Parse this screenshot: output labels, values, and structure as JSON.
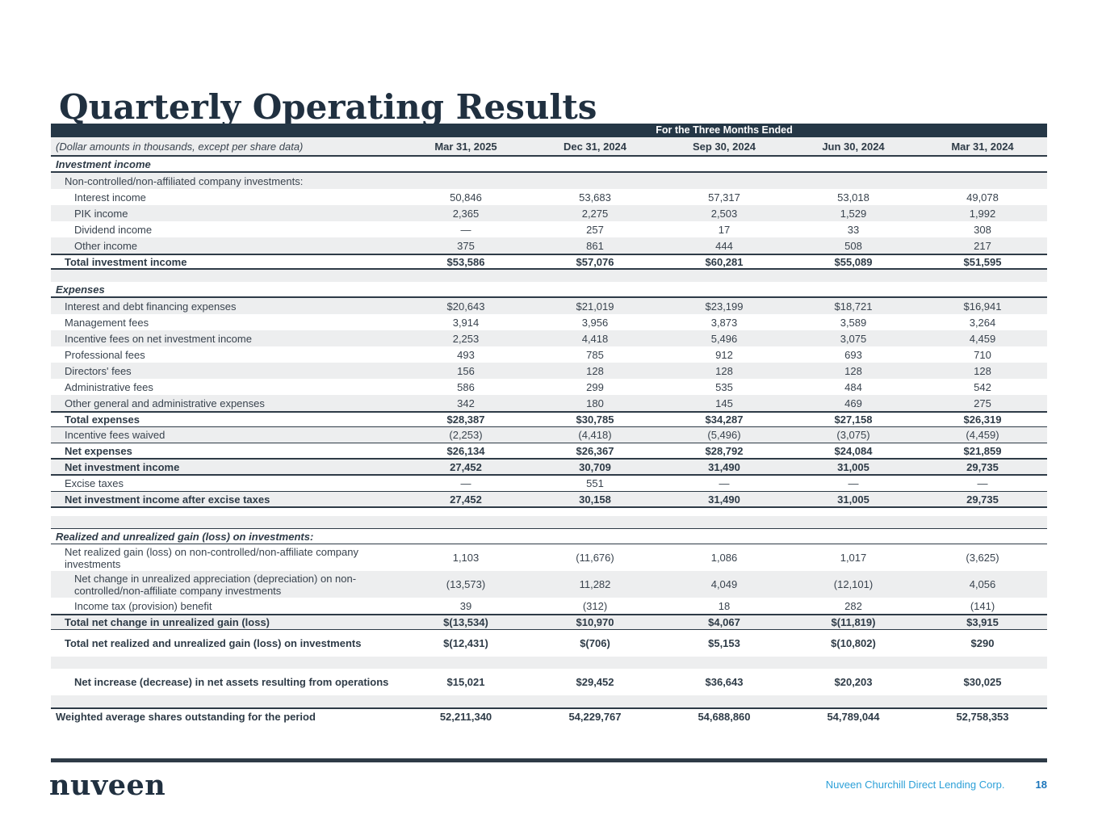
{
  "title": "Quarterly Operating Results",
  "colors": {
    "navy_bar": "#253746",
    "row_stripe": "#EDEEEF",
    "rule_dark": "#2E3B47",
    "footer_company_blue": "#2CA0D8",
    "footer_page_blue": "#1B75BB"
  },
  "table": {
    "banner": "For the Three Months Ended",
    "note": "(Dollar amounts in thousands, except per share data)",
    "columns": [
      "Mar 31, 2025",
      "Dec 31, 2024",
      "Sep 30, 2024",
      "Jun 30, 2024",
      "Mar 31, 2024"
    ],
    "rows": [
      {
        "kind": "section",
        "label": "Investment income",
        "indent": 0,
        "shaded": false,
        "bt": 0,
        "bb": 2,
        "values": []
      },
      {
        "kind": "item",
        "label": "Non-controlled/non-affiliated company investments:",
        "indent": 1,
        "shaded": true,
        "bt": 0,
        "bb": 0,
        "values": []
      },
      {
        "kind": "item",
        "label": "Interest income",
        "indent": 2,
        "shaded": false,
        "bt": 0,
        "bb": 0,
        "values": [
          "50,846",
          "53,683",
          "57,317",
          "53,018",
          "49,078"
        ]
      },
      {
        "kind": "item",
        "label": "PIK income",
        "indent": 2,
        "shaded": true,
        "bt": 0,
        "bb": 0,
        "values": [
          "2,365",
          "2,275",
          "2,503",
          "1,529",
          "1,992"
        ]
      },
      {
        "kind": "item",
        "label": "Dividend income",
        "indent": 2,
        "shaded": false,
        "bt": 0,
        "bb": 0,
        "values": [
          "—",
          "257",
          "17",
          "33",
          "308"
        ]
      },
      {
        "kind": "item",
        "label": "Other income",
        "indent": 2,
        "shaded": true,
        "bt": 0,
        "bb": 0,
        "values": [
          "375",
          "861",
          "444",
          "508",
          "217"
        ]
      },
      {
        "kind": "total",
        "label": "Total investment income",
        "indent": 1,
        "shaded": false,
        "bt": 2,
        "bb": 2,
        "values": [
          "$53,586",
          "$57,076",
          "$60,281",
          "$55,089",
          "$51,595"
        ]
      },
      {
        "kind": "spacer",
        "label": "",
        "indent": 0,
        "shaded": true,
        "bt": 0,
        "bb": 0,
        "values": []
      },
      {
        "kind": "section",
        "label": "Expenses",
        "indent": 0,
        "shaded": false,
        "bt": 0,
        "bb": 2,
        "values": []
      },
      {
        "kind": "item",
        "label": "Interest and debt financing expenses",
        "indent": 1,
        "shaded": true,
        "bt": 0,
        "bb": 0,
        "values": [
          "$20,643",
          "$21,019",
          "$23,199",
          "$18,721",
          "$16,941"
        ]
      },
      {
        "kind": "item",
        "label": "Management fees",
        "indent": 1,
        "shaded": false,
        "bt": 0,
        "bb": 0,
        "values": [
          "3,914",
          "3,956",
          "3,873",
          "3,589",
          "3,264"
        ]
      },
      {
        "kind": "item",
        "label": "Incentive fees on net investment income",
        "indent": 1,
        "shaded": true,
        "bt": 0,
        "bb": 0,
        "values": [
          "2,253",
          "4,418",
          "5,496",
          "3,075",
          "4,459"
        ]
      },
      {
        "kind": "item",
        "label": "Professional fees",
        "indent": 1,
        "shaded": false,
        "bt": 0,
        "bb": 0,
        "values": [
          "493",
          "785",
          "912",
          "693",
          "710"
        ]
      },
      {
        "kind": "item",
        "label": "Directors' fees",
        "indent": 1,
        "shaded": true,
        "bt": 0,
        "bb": 0,
        "values": [
          "156",
          "128",
          "128",
          "128",
          "128"
        ]
      },
      {
        "kind": "item",
        "label": "Administrative fees",
        "indent": 1,
        "shaded": false,
        "bt": 0,
        "bb": 0,
        "values": [
          "586",
          "299",
          "535",
          "484",
          "542"
        ]
      },
      {
        "kind": "item",
        "label": "Other general and administrative expenses",
        "indent": 1,
        "shaded": true,
        "bt": 0,
        "bb": 0,
        "values": [
          "342",
          "180",
          "145",
          "469",
          "275"
        ]
      },
      {
        "kind": "total",
        "label": "Total expenses",
        "indent": 1,
        "shaded": false,
        "bt": 2,
        "bb": 1,
        "values": [
          "$28,387",
          "$30,785",
          "$34,287",
          "$27,158",
          "$26,319"
        ]
      },
      {
        "kind": "item",
        "label": "Incentive fees waived",
        "indent": 1,
        "shaded": true,
        "bt": 0,
        "bb": 1,
        "values": [
          "(2,253)",
          "(4,418)",
          "(5,496)",
          "(3,075)",
          "(4,459)"
        ]
      },
      {
        "kind": "total",
        "label": "Net expenses",
        "indent": 1,
        "shaded": false,
        "bt": 0,
        "bb": 2,
        "values": [
          "$26,134",
          "$26,367",
          "$28,792",
          "$24,084",
          "$21,859"
        ]
      },
      {
        "kind": "total",
        "label": "Net investment income",
        "indent": 1,
        "shaded": true,
        "bt": 0,
        "bb": 2,
        "values": [
          "27,452",
          "30,709",
          "31,490",
          "31,005",
          "29,735"
        ]
      },
      {
        "kind": "item",
        "label": "Excise taxes",
        "indent": 1,
        "shaded": false,
        "bt": 0,
        "bb": 1,
        "values": [
          "—",
          "551",
          "—",
          "—",
          "—"
        ]
      },
      {
        "kind": "total",
        "label": "Net investment income after excise taxes",
        "indent": 1,
        "shaded": true,
        "bt": 0,
        "bb": 2,
        "values": [
          "27,452",
          "30,158",
          "31,490",
          "31,005",
          "29,735"
        ]
      },
      {
        "kind": "gap",
        "label": "",
        "indent": 0,
        "shaded": false,
        "bt": 0,
        "bb": 0,
        "values": []
      },
      {
        "kind": "spacer",
        "label": "",
        "indent": 0,
        "shaded": true,
        "bt": 0,
        "bb": 0,
        "values": []
      },
      {
        "kind": "section",
        "label": "Realized and unrealized gain (loss) on investments:",
        "indent": 0,
        "shaded": false,
        "bt": 1,
        "bb": 1,
        "values": []
      },
      {
        "kind": "item",
        "two": true,
        "label": "Net realized gain (loss) on non-controlled/non-affiliate company investments",
        "indent": 1,
        "shaded": false,
        "bt": 0,
        "bb": 0,
        "values": [
          "1,103",
          "(11,676)",
          "1,086",
          "1,017",
          "(3,625)"
        ]
      },
      {
        "kind": "item",
        "two": true,
        "label": "Net change in unrealized appreciation (depreciation) on non-controlled/non-affiliate company investments",
        "indent": 2,
        "shaded": true,
        "bt": 0,
        "bb": 0,
        "values": [
          "(13,573)",
          "11,282",
          "4,049",
          "(12,101)",
          "4,056"
        ]
      },
      {
        "kind": "item",
        "label": "Income tax (provision) benefit",
        "indent": 2,
        "shaded": false,
        "bt": 0,
        "bb": 0,
        "values": [
          "39",
          "(312)",
          "18",
          "282",
          "(141)"
        ]
      },
      {
        "kind": "total",
        "label": "Total net change in unrealized gain (loss)",
        "indent": 1,
        "shaded": true,
        "bt": 2,
        "bb": 1,
        "values": [
          "$(13,534)",
          "$10,970",
          "$4,067",
          "$(11,819)",
          "$3,915"
        ]
      },
      {
        "kind": "total",
        "two": true,
        "label": "Total net realized and unrealized gain (loss) on investments",
        "indent": 1,
        "shaded": false,
        "bt": 0,
        "bb": 0,
        "values": [
          "$(12,431)",
          "$(706)",
          "$5,153",
          "$(10,802)",
          "$290"
        ]
      },
      {
        "kind": "spacer",
        "label": "",
        "indent": 0,
        "shaded": true,
        "bt": 0,
        "bb": 0,
        "values": []
      },
      {
        "kind": "total",
        "two": true,
        "label": "Net increase (decrease) in net assets resulting from operations",
        "indent": 2,
        "shaded": false,
        "bt": 0,
        "bb": 0,
        "values": [
          "$15,021",
          "$29,452",
          "$36,643",
          "$20,203",
          "$30,025"
        ]
      },
      {
        "kind": "spacer",
        "label": "",
        "indent": 0,
        "shaded": true,
        "bt": 0,
        "bb": 0,
        "values": []
      },
      {
        "kind": "total",
        "label": "Weighted average shares outstanding for the period",
        "indent": 0,
        "shaded": false,
        "bt": 2,
        "bb": 0,
        "values": [
          "52,211,340",
          "54,229,767",
          "54,688,860",
          "54,789,044",
          "52,758,353"
        ]
      }
    ]
  },
  "footer": {
    "logo": "nuveen",
    "company": "Nuveen Churchill Direct Lending Corp.",
    "page": "18"
  }
}
